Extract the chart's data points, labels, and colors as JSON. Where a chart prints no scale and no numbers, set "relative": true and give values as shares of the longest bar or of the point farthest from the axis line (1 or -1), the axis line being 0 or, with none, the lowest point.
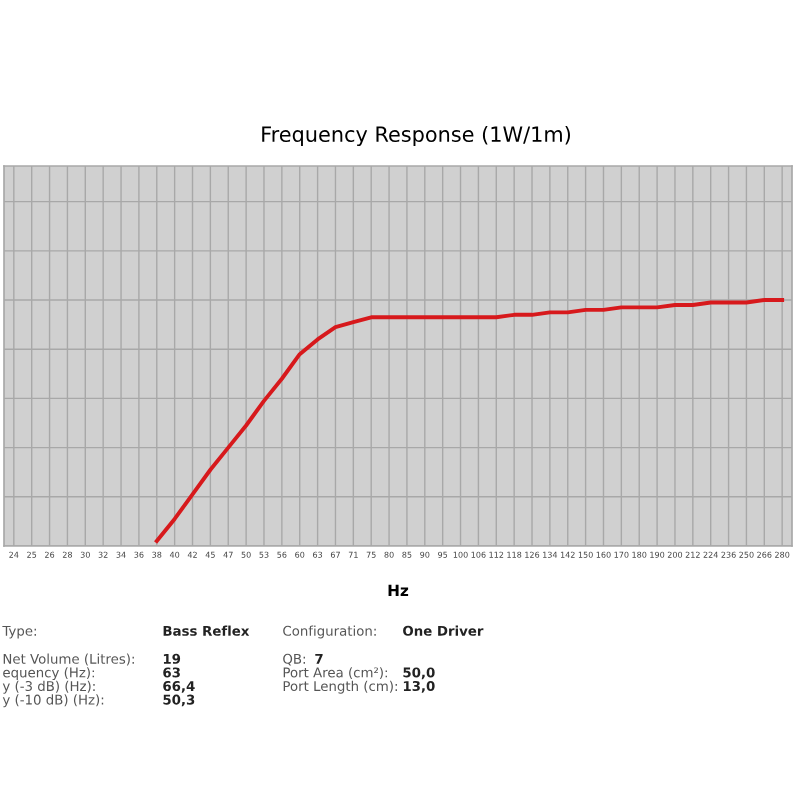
{
  "chart_data": {
    "type": "line",
    "title": "Frequency Response (1W/1m)",
    "xlabel": "Hz",
    "categories": [
      "24",
      "25",
      "26",
      "28",
      "30",
      "32",
      "34",
      "36",
      "38",
      "40",
      "42",
      "45",
      "47",
      "50",
      "53",
      "56",
      "60",
      "63",
      "67",
      "71",
      "75",
      "80",
      "85",
      "90",
      "95",
      "100",
      "106",
      "112",
      "118",
      "126",
      "134",
      "142",
      "150",
      "160",
      "170",
      "180",
      "190",
      "200",
      "212",
      "224",
      "236",
      "250",
      "266",
      "280"
    ],
    "relative": true,
    "series": [
      {
        "color": "#d7191c",
        "values": [
          null,
          null,
          null,
          null,
          null,
          null,
          null,
          null,
          0.02,
          0.11,
          0.21,
          0.31,
          0.4,
          0.49,
          0.59,
          0.68,
          0.78,
          0.84,
          0.89,
          0.91,
          0.93,
          0.93,
          0.93,
          0.93,
          0.93,
          0.93,
          0.93,
          0.93,
          0.94,
          0.94,
          0.95,
          0.95,
          0.96,
          0.96,
          0.97,
          0.97,
          0.97,
          0.98,
          0.98,
          0.99,
          0.99,
          0.99,
          1.0,
          1.0
        ]
      }
    ],
    "grid": true,
    "legend": false,
    "marker": "none",
    "line_style": "solid",
    "tick_labels": "x",
    "annotations": [
      "Type:",
      "Bass Reflex",
      "Configuration:",
      "One Driver",
      "Net Volume (Litres):",
      "19",
      "QB:",
      "7",
      "equency (Hz):",
      "63",
      "Port Area (cm²):",
      "50,0",
      "y (-3 dB) (Hz):",
      "66,4",
      "Port Length (cm):",
      "13,0",
      "y (-10 dB) (Hz):",
      "50,3"
    ]
  }
}
